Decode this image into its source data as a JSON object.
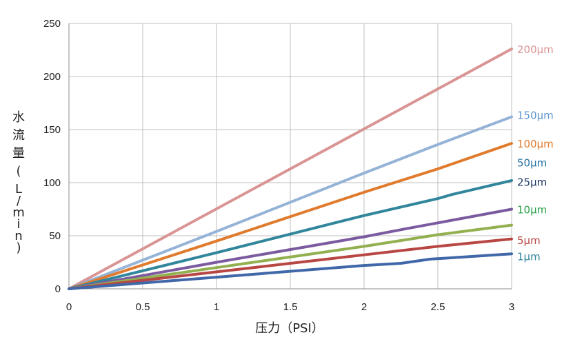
{
  "chart_data": {
    "type": "line",
    "title": "",
    "xlabel": "压力（PSI）",
    "ylabel": "水流量（L/min）",
    "xlim": [
      0,
      3
    ],
    "ylim": [
      0,
      250
    ],
    "x_ticks": [
      "0",
      "0.5",
      "1",
      "1.5",
      "2",
      "2.5",
      "3"
    ],
    "y_ticks": [
      "0",
      "50",
      "100",
      "150",
      "200",
      "250"
    ],
    "grid": true,
    "legend": "labels at right end of lines",
    "series": [
      {
        "name": "200µm",
        "color": "#d99594",
        "x": [
          0,
          3
        ],
        "y": [
          0,
          226
        ]
      },
      {
        "name": "150µm",
        "color": "#95b3d7",
        "x": [
          0,
          1,
          2,
          2.5,
          3
        ],
        "y": [
          0,
          54,
          109,
          136,
          162
        ]
      },
      {
        "name": "100µm",
        "color": "#e07b2e",
        "x": [
          0,
          1,
          2,
          2.5,
          3
        ],
        "y": [
          0,
          45,
          91,
          113,
          137
        ]
      },
      {
        "name": "50µm",
        "color": "#31869b",
        "x": [
          0,
          1,
          2,
          2.5,
          2.6,
          3
        ],
        "y": [
          0,
          34,
          69,
          85,
          89,
          102
        ]
      },
      {
        "name": "25µm",
        "color": "#7b5aa0",
        "x": [
          0,
          1,
          2,
          2.3,
          3
        ],
        "y": [
          0,
          25,
          49,
          57,
          75
        ]
      },
      {
        "name": "10µm",
        "color": "#92b050",
        "x": [
          0,
          1,
          2,
          2.5,
          3
        ],
        "y": [
          0,
          20,
          40,
          51,
          60
        ]
      },
      {
        "name": "5µm",
        "color": "#b84744",
        "x": [
          0,
          1,
          2,
          2.5,
          3
        ],
        "y": [
          0,
          16,
          32,
          40,
          47
        ]
      },
      {
        "name": "1µm",
        "color": "#4067a8",
        "x": [
          0,
          1,
          2,
          2.25,
          2.45,
          3
        ],
        "y": [
          0,
          11,
          22,
          24,
          28,
          33
        ]
      }
    ],
    "label_colors": {
      "200µm": "#d99594",
      "150µm": "#5b94cf",
      "100µm": "#e07b2e",
      "50µm": "#2471a3",
      "25µm": "#1f3864",
      "10µm": "#2aa24a",
      "5µm": "#b84744",
      "1µm": "#31869b"
    }
  }
}
